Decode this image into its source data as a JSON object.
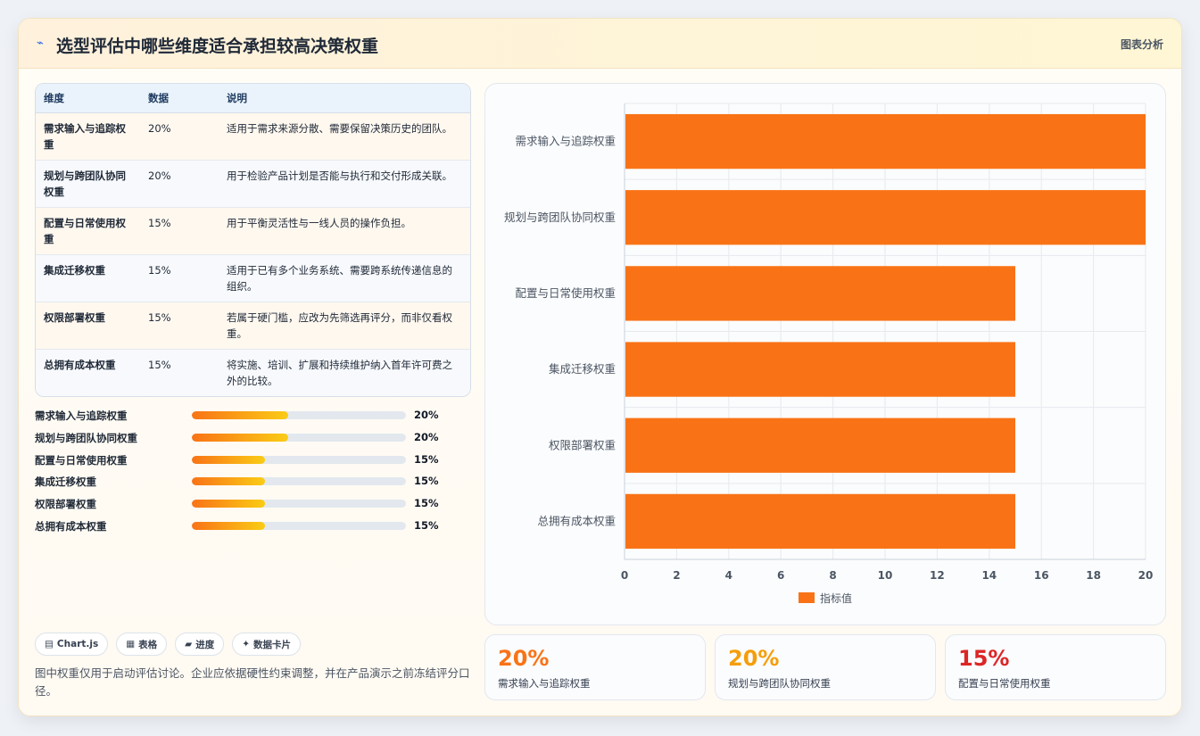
{
  "header": {
    "icon": "sparkle-icon",
    "title": "选型评估中哪些维度适合承担较高决策权重",
    "tag": "图表分析"
  },
  "table": {
    "columns": [
      "维度",
      "数据",
      "说明"
    ],
    "rows": [
      {
        "dimension": "需求输入与追踪权重",
        "value": "20%",
        "description": "适用于需求来源分散、需要保留决策历史的团队。"
      },
      {
        "dimension": "规划与跨团队协同权重",
        "value": "20%",
        "description": "用于检验产品计划是否能与执行和交付形成关联。"
      },
      {
        "dimension": "配置与日常使用权重",
        "value": "15%",
        "description": "用于平衡灵活性与一线人员的操作负担。"
      },
      {
        "dimension": "集成迁移权重",
        "value": "15%",
        "description": "适用于已有多个业务系统、需要跨系统传递信息的组织。"
      },
      {
        "dimension": "权限部署权重",
        "value": "15%",
        "description": "若属于硬门槛，应改为先筛选再评分，而非仅看权重。"
      },
      {
        "dimension": "总拥有成本权重",
        "value": "15%",
        "description": "将实施、培训、扩展和持续维护纳入首年许可费之外的比较。"
      }
    ]
  },
  "progress": [
    {
      "label": "需求输入与追踪权重",
      "value": "20%",
      "fraction": 0.45
    },
    {
      "label": "规划与跨团队协同权重",
      "value": "20%",
      "fraction": 0.45
    },
    {
      "label": "配置与日常使用权重",
      "value": "15%",
      "fraction": 0.34
    },
    {
      "label": "集成迁移权重",
      "value": "15%",
      "fraction": 0.34
    },
    {
      "label": "权限部署权重",
      "value": "15%",
      "fraction": 0.34
    },
    {
      "label": "总拥有成本权重",
      "value": "15%",
      "fraction": 0.34
    }
  ],
  "chips": [
    {
      "icon": "chart-icon",
      "glyph": "▤",
      "label": "Chart.js"
    },
    {
      "icon": "table-icon",
      "glyph": "▦",
      "label": "表格"
    },
    {
      "icon": "progress-icon",
      "glyph": "▰",
      "label": "进度"
    },
    {
      "icon": "card-icon",
      "glyph": "✦",
      "label": "数据卡片"
    }
  ],
  "note": "图中权重仅用于启动评估讨论。企业应依据硬性约束调整，并在产品演示之前冻结评分口径。",
  "stats": [
    {
      "value": "20%",
      "label": "需求输入与追踪权重",
      "color": "#f97316"
    },
    {
      "value": "20%",
      "label": "规划与跨团队协同权重",
      "color": "#f59e0b"
    },
    {
      "value": "15%",
      "label": "配置与日常使用权重",
      "color": "#dc2626"
    }
  ],
  "colors": {
    "bar": "#f97316",
    "accent": "#f97316"
  },
  "chart_data": {
    "type": "bar",
    "orientation": "horizontal",
    "categories": [
      "需求输入与追踪权重",
      "规划与跨团队协同权重",
      "配置与日常使用权重",
      "集成迁移权重",
      "权限部署权重",
      "总拥有成本权重"
    ],
    "series": [
      {
        "name": "指标值",
        "values": [
          20,
          20,
          15,
          15,
          15,
          15
        ],
        "color": "#f97316"
      }
    ],
    "xlim": [
      0,
      20
    ],
    "xticks": [
      0,
      2,
      4,
      6,
      8,
      10,
      12,
      14,
      16,
      18,
      20
    ],
    "grid": true,
    "legend": "bottom"
  }
}
